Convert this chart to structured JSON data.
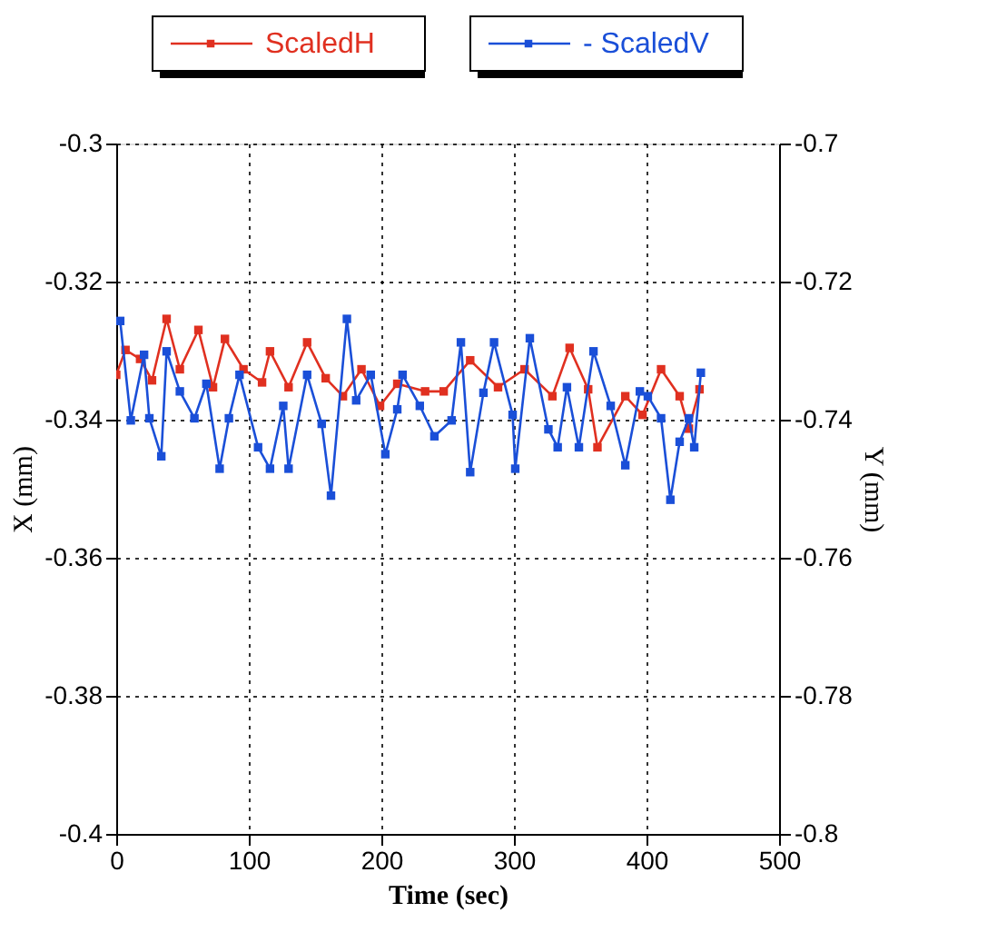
{
  "chart_data": {
    "type": "line",
    "xlabel": "Time (sec)",
    "ylabel": "X (mm)",
    "y2label": "Y (mm)",
    "xlim": [
      0,
      500
    ],
    "xticks": [
      0,
      100,
      200,
      300,
      400,
      500
    ],
    "ylim": [
      -0.4,
      -0.3
    ],
    "yticks": [
      -0.4,
      -0.38,
      -0.36,
      -0.34,
      -0.32,
      -0.3
    ],
    "y2lim": [
      -0.8,
      -0.7
    ],
    "y2ticks": [
      -0.8,
      -0.78,
      -0.76,
      -0.74,
      -0.72,
      -0.7
    ],
    "grid": true,
    "legend": "top",
    "marker": "square",
    "line_style": "solid",
    "series": [
      {
        "name": "ScaledH",
        "color": "#e03020",
        "x": [
          0,
          7,
          18,
          27,
          38,
          48,
          62,
          73,
          82,
          96,
          110,
          116,
          130,
          144,
          158,
          171,
          185,
          199,
          212,
          233,
          247,
          267,
          288,
          308,
          329,
          342,
          356,
          363,
          384,
          397,
          411,
          425,
          432,
          440
        ],
        "values": [
          -0.3335,
          -0.3299,
          -0.3312,
          -0.3343,
          -0.3254,
          -0.3327,
          -0.327,
          -0.3353,
          -0.3283,
          -0.3327,
          -0.3346,
          -0.3301,
          -0.3353,
          -0.3288,
          -0.334,
          -0.3366,
          -0.3327,
          -0.338,
          -0.3348,
          -0.3359,
          -0.3359,
          -0.3314,
          -0.3353,
          -0.3327,
          -0.3366,
          -0.3296,
          -0.3356,
          -0.344,
          -0.3366,
          -0.3393,
          -0.3327,
          -0.3366,
          -0.3413,
          -0.3356
        ]
      },
      {
        "name": "- ScaledV",
        "color": "#1a4fd8",
        "axis": "y2",
        "x": [
          3,
          11,
          21,
          25,
          34,
          38,
          48,
          59,
          68,
          78,
          85,
          93,
          107,
          116,
          126,
          130,
          144,
          155,
          162,
          174,
          181,
          192,
          203,
          212,
          216,
          229,
          240,
          253,
          260,
          267,
          277,
          285,
          299,
          301,
          312,
          326,
          333,
          340,
          349,
          360,
          373,
          384,
          395,
          401,
          411,
          418,
          425,
          432,
          436,
          441
        ],
        "values": [
          -0.7257,
          -0.7401,
          -0.7306,
          -0.7398,
          -0.7453,
          -0.7301,
          -0.7359,
          -0.7398,
          -0.7348,
          -0.7471,
          -0.7398,
          -0.7335,
          -0.744,
          -0.7471,
          -0.738,
          -0.7471,
          -0.7335,
          -0.7406,
          -0.751,
          -0.7254,
          -0.7372,
          -0.7335,
          -0.745,
          -0.7385,
          -0.7335,
          -0.738,
          -0.7424,
          -0.7401,
          -0.7288,
          -0.7476,
          -0.7361,
          -0.7288,
          -0.7393,
          -0.7471,
          -0.7282,
          -0.7414,
          -0.744,
          -0.7353,
          -0.744,
          -0.7301,
          -0.738,
          -0.7466,
          -0.7359,
          -0.7366,
          -0.7398,
          -0.7516,
          -0.7432,
          -0.7398,
          -0.744,
          -0.7332
        ]
      }
    ]
  }
}
